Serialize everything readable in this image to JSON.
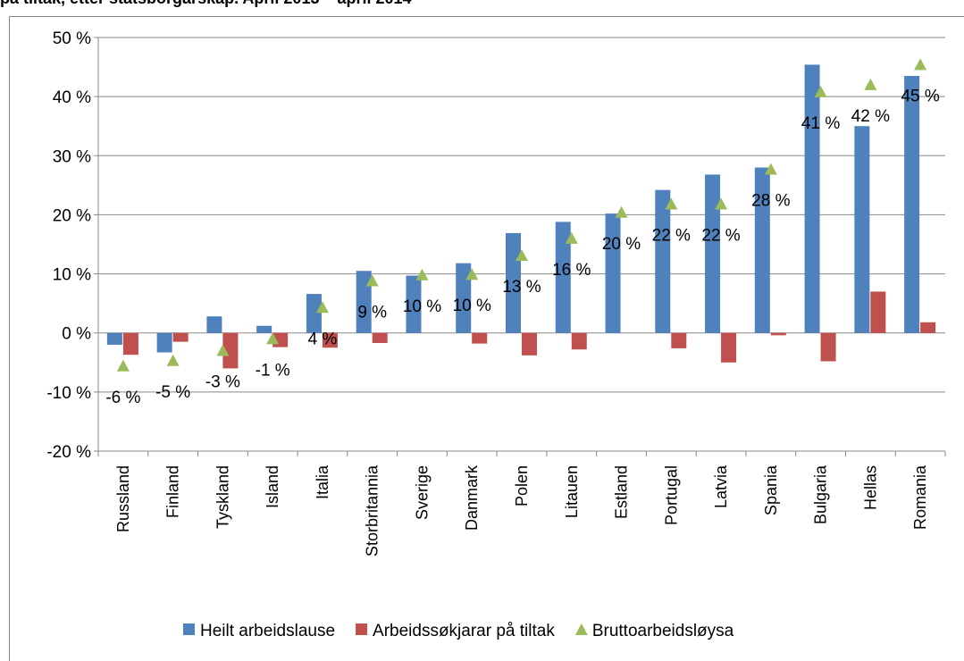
{
  "chart_data": {
    "type": "bar",
    "title": "på tiltak, etter statsborgarskap. April 2013 – april 2014",
    "categories": [
      "Russland",
      "Finland",
      "Tyskland",
      "Island",
      "Italia",
      "Storbritannia",
      "Sverige",
      "Danmark",
      "Polen",
      "Litauen",
      "Estland",
      "Portugal",
      "Latvia",
      "Spania",
      "Bulgaria",
      "Hellas",
      "Romania"
    ],
    "series": [
      {
        "name": "Heilt arbeidslause",
        "color": "#4f81bd",
        "kind": "bar",
        "values": [
          -2,
          -3.3,
          2.8,
          1.2,
          6.6,
          10.5,
          9.7,
          11.8,
          16.9,
          18.8,
          20.2,
          24.2,
          26.8,
          28,
          45.4,
          35,
          43.5
        ]
      },
      {
        "name": "Arbeidssøkjarar på tiltak",
        "color": "#c0504d",
        "kind": "bar",
        "values": [
          -3.7,
          -1.5,
          -6,
          -2.4,
          -2.5,
          -1.7,
          0,
          -1.8,
          -3.8,
          -2.8,
          0,
          -2.6,
          -5,
          -0.4,
          -4.8,
          7,
          1.8
        ]
      },
      {
        "name": "Bruttoarbeidsløysa",
        "color": "#9bbb59",
        "kind": "marker",
        "values": [
          -5.6,
          -4.7,
          -3,
          -1,
          4.3,
          8.8,
          9.8,
          9.9,
          13.1,
          16,
          20.4,
          21.8,
          21.8,
          27.7,
          40.8,
          42,
          45.4
        ],
        "value_labels": [
          "-6 %",
          "-5 %",
          "-3 %",
          "-1 %",
          "4 %",
          "9 %",
          "10 %",
          "10 %",
          "13 %",
          "16 %",
          "20 %",
          "22 %",
          "22 %",
          "28 %",
          "41 %",
          "42 %",
          "45 %"
        ]
      }
    ],
    "ylim": [
      -20,
      50
    ],
    "yticks": [
      {
        "value": -20,
        "label": "-20 %"
      },
      {
        "value": -10,
        "label": "-10 %"
      },
      {
        "value": 0,
        "label": "0 %"
      },
      {
        "value": 10,
        "label": "10 %"
      },
      {
        "value": 20,
        "label": "20 %"
      },
      {
        "value": 30,
        "label": "30 %"
      },
      {
        "value": 40,
        "label": "40 %"
      },
      {
        "value": 50,
        "label": "50 %"
      }
    ],
    "grid": true,
    "legend": "bottom"
  }
}
